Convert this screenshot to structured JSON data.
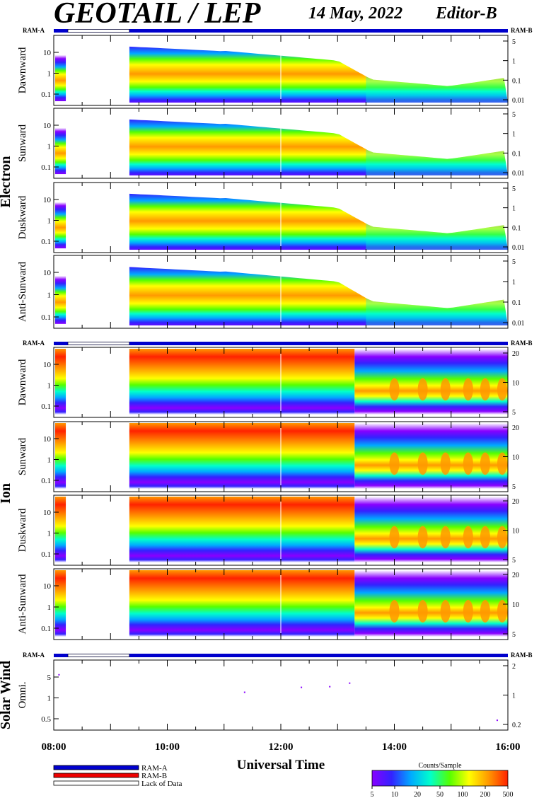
{
  "title": "GEOTAIL / LEP",
  "date": "14 May, 2022",
  "editor": "Editor-B",
  "chart_data": {
    "type": "heatmap",
    "x_label": "Universal Time",
    "x_ticks": [
      "08:00",
      "10:00",
      "12:00",
      "14:00",
      "16:00"
    ],
    "ram_a": "RAM-A",
    "ram_b": "RAM-B",
    "groups": [
      {
        "name": "Electron",
        "left_ticks": [
          "10",
          "1",
          "0.1"
        ],
        "right_ticks": [
          "5",
          "1",
          "0.1",
          "0.01"
        ],
        "panels": [
          "Dawnward",
          "Sunward",
          "Duskward",
          "Anti-Sunward"
        ]
      },
      {
        "name": "Ion",
        "left_ticks": [
          "10",
          "1",
          "0.1"
        ],
        "right_ticks": [
          "20",
          "10",
          "5"
        ],
        "panels": [
          "Dawnward",
          "Sunward",
          "Duskward",
          "Anti-Sunward"
        ]
      },
      {
        "name": "Solar Wind",
        "left_ticks": [
          "5",
          "1",
          "0.5"
        ],
        "right_ticks": [
          "2",
          "1",
          "0.2"
        ],
        "panels": [
          "Omni."
        ]
      }
    ],
    "data_gap_hours": [
      8.25,
      9.33
    ],
    "colorbar": {
      "label": "Counts/Sample",
      "ticks": [
        "5",
        "10",
        "20",
        "50",
        "100",
        "200",
        "500"
      ],
      "colors": [
        "#8800ff",
        "#3322ff",
        "#00aaff",
        "#00ffcc",
        "#55ff00",
        "#ffff00",
        "#ff9900",
        "#ff2200"
      ]
    },
    "legend": [
      {
        "label": "RAM-A",
        "color": "#0000cc"
      },
      {
        "label": "RAM-B",
        "color": "#ee0000"
      },
      {
        "label": "Lack of Data",
        "color": "#ffffff"
      }
    ]
  }
}
